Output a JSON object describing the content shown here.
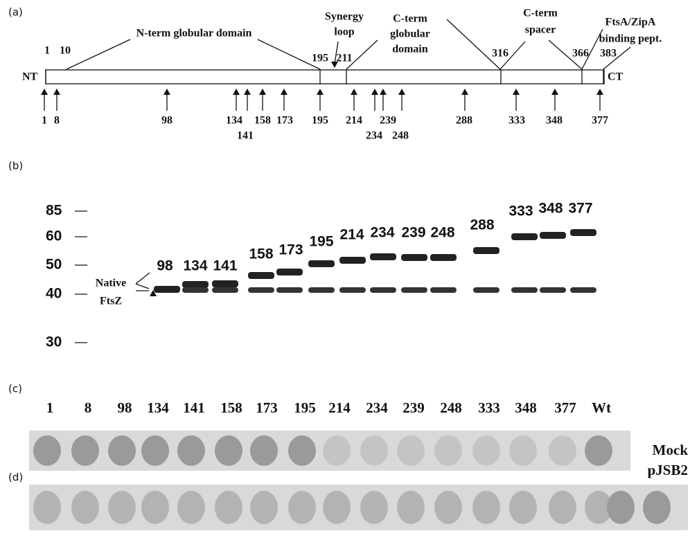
{
  "panel_labels": [
    "(a)",
    "(b)",
    "(c)",
    "(d)"
  ],
  "panel_a": {
    "ends": [
      "NT",
      "CT"
    ],
    "domains": [
      {
        "lines": [
          "N-term globular domain"
        ]
      },
      {
        "lines": [
          "Synergy",
          "loop"
        ]
      },
      {
        "lines": [
          "C-term",
          "globular",
          "domain"
        ]
      },
      {
        "lines": [
          "C-term",
          "spacer"
        ]
      },
      {
        "lines": [
          "FtsA/ZipA",
          "binding pept."
        ]
      }
    ],
    "boundaries": [
      "1",
      "10",
      "195",
      "211",
      "316",
      "366",
      "383"
    ],
    "insertion_sites": [
      "1",
      "8",
      "98",
      "134",
      "141",
      "158",
      "173",
      "195",
      "214",
      "234",
      "239",
      "248",
      "288",
      "333",
      "348",
      "377"
    ]
  },
  "panel_b": {
    "ladder": [
      "85",
      "60",
      "50",
      "40",
      "30"
    ],
    "native_label": [
      "Native",
      "FtsZ"
    ],
    "lanes": [
      "98",
      "134",
      "141",
      "158",
      "173",
      "195",
      "214",
      "234",
      "239",
      "248",
      "288",
      "333",
      "348",
      "377"
    ]
  },
  "panel_c": {
    "lanes": [
      "1",
      "8",
      "98",
      "134",
      "141",
      "158",
      "173",
      "195",
      "214",
      "234",
      "239",
      "248",
      "333",
      "348",
      "377",
      "Wt"
    ]
  },
  "panel_d": {
    "controls": [
      "Mock",
      "pJSB2"
    ]
  }
}
